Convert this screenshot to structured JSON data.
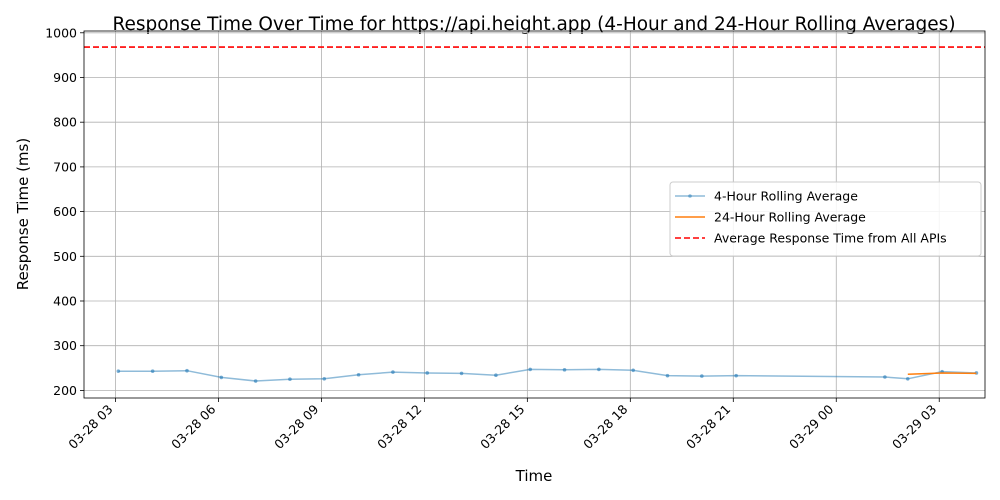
{
  "chart_data": {
    "type": "line",
    "title": "Response Time Over Time for https://api.height.app (4-Hour and 24-Hour Rolling Averages)",
    "xlabel": "Time",
    "ylabel": "Response Time (ms)",
    "x_tick_labels": [
      "03-28 03",
      "03-28 06",
      "03-28 09",
      "03-28 12",
      "03-28 15",
      "03-28 18",
      "03-28 21",
      "03-29 00",
      "03-29 03"
    ],
    "y_tick_labels": [
      "200",
      "300",
      "400",
      "500",
      "600",
      "700",
      "800",
      "900",
      "1000"
    ],
    "y_ticks": [
      200,
      300,
      400,
      500,
      600,
      700,
      800,
      900,
      1000
    ],
    "ylim": [
      183,
      1004
    ],
    "xlim": [
      "2024-03-28 02:05",
      "2024-03-29 04:20"
    ],
    "grid": true,
    "legend_position": "center-right",
    "series": [
      {
        "name": "4-Hour Rolling Average",
        "color": "#1f77b4",
        "style": "line-with-markers",
        "points": [
          {
            "x": "2024-03-28 03:05",
            "y": 243
          },
          {
            "x": "2024-03-28 04:05",
            "y": 243
          },
          {
            "x": "2024-03-28 05:05",
            "y": 244
          },
          {
            "x": "2024-03-28 06:05",
            "y": 229
          },
          {
            "x": "2024-03-28 07:05",
            "y": 221
          },
          {
            "x": "2024-03-28 08:05",
            "y": 225
          },
          {
            "x": "2024-03-28 09:05",
            "y": 226
          },
          {
            "x": "2024-03-28 10:05",
            "y": 235
          },
          {
            "x": "2024-03-28 11:05",
            "y": 241
          },
          {
            "x": "2024-03-28 12:05",
            "y": 239
          },
          {
            "x": "2024-03-28 13:05",
            "y": 238
          },
          {
            "x": "2024-03-28 14:05",
            "y": 234
          },
          {
            "x": "2024-03-28 15:05",
            "y": 247
          },
          {
            "x": "2024-03-28 16:05",
            "y": 246
          },
          {
            "x": "2024-03-28 17:05",
            "y": 247
          },
          {
            "x": "2024-03-28 18:05",
            "y": 245
          },
          {
            "x": "2024-03-28 19:05",
            "y": 233
          },
          {
            "x": "2024-03-28 20:05",
            "y": 232
          },
          {
            "x": "2024-03-28 21:05",
            "y": 233
          },
          {
            "x": "2024-03-29 01:25",
            "y": 230
          },
          {
            "x": "2024-03-29 02:05",
            "y": 226
          },
          {
            "x": "2024-03-29 03:05",
            "y": 242
          },
          {
            "x": "2024-03-29 04:05",
            "y": 239
          }
        ]
      },
      {
        "name": "24-Hour Rolling Average",
        "color": "#ff7f0e",
        "style": "line",
        "points": [
          {
            "x": "2024-03-29 02:05",
            "y": 236
          },
          {
            "x": "2024-03-29 03:05",
            "y": 239
          },
          {
            "x": "2024-03-29 04:05",
            "y": 238
          }
        ]
      }
    ],
    "reference_line": {
      "name": "Average Response Time from All APIs",
      "y": 968,
      "color": "#ff0000",
      "style": "dashed"
    }
  }
}
